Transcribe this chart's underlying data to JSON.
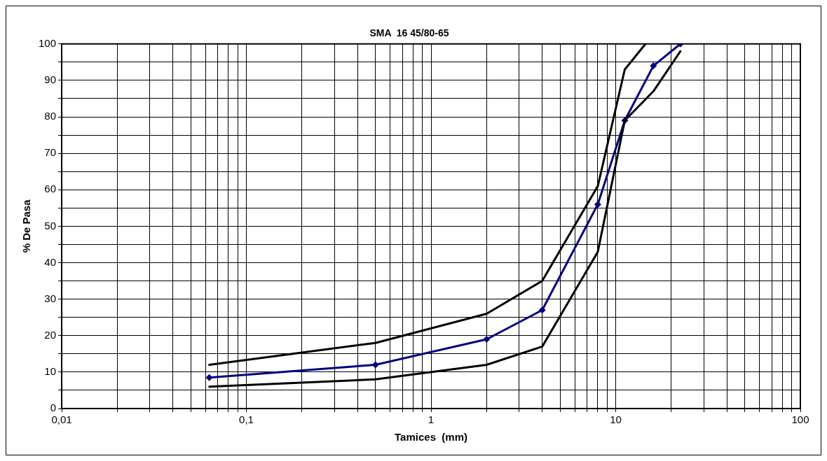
{
  "chart_data": {
    "type": "line",
    "title": "SMA  16 45/80-65",
    "xlabel": "Tamices  (mm)",
    "ylabel": "% De Pasa",
    "log": "x",
    "xlim": [
      0.01,
      100
    ],
    "ylim": [
      0,
      100
    ],
    "xticks": [
      {
        "value": 0.01,
        "label": "0,01"
      },
      {
        "value": 0.02,
        "label": null
      },
      {
        "value": 0.03,
        "label": null
      },
      {
        "value": 0.04,
        "label": null
      },
      {
        "value": 0.05,
        "label": null
      },
      {
        "value": 0.06,
        "label": null
      },
      {
        "value": 0.07,
        "label": null
      },
      {
        "value": 0.08,
        "label": null
      },
      {
        "value": 0.09,
        "label": null
      },
      {
        "value": 0.1,
        "label": "0,1"
      },
      {
        "value": 0.2,
        "label": null
      },
      {
        "value": 0.3,
        "label": null
      },
      {
        "value": 0.4,
        "label": null
      },
      {
        "value": 0.5,
        "label": null
      },
      {
        "value": 0.6,
        "label": null
      },
      {
        "value": 0.7,
        "label": null
      },
      {
        "value": 0.8,
        "label": null
      },
      {
        "value": 0.9,
        "label": null
      },
      1,
      {
        "value": 2,
        "label": null
      },
      {
        "value": 3,
        "label": null
      },
      {
        "value": 4,
        "label": null
      },
      {
        "value": 5,
        "label": null
      },
      {
        "value": 6,
        "label": null
      },
      {
        "value": 7,
        "label": null
      },
      {
        "value": 8,
        "label": null
      },
      {
        "value": 9,
        "label": null
      },
      10,
      {
        "value": 20,
        "label": null
      },
      {
        "value": 30,
        "label": null
      },
      {
        "value": 40,
        "label": null
      },
      {
        "value": 50,
        "label": null
      },
      {
        "value": 60,
        "label": null
      },
      {
        "value": 70,
        "label": null
      },
      {
        "value": 80,
        "label": null
      },
      {
        "value": 90,
        "label": null
      },
      100
    ],
    "yticks": [
      0,
      {
        "value": 5,
        "label": null
      },
      10,
      {
        "value": 15,
        "label": null
      },
      20,
      {
        "value": 25,
        "label": null
      },
      30,
      {
        "value": 35,
        "label": null
      },
      40,
      {
        "value": 45,
        "label": null
      },
      50,
      {
        "value": 55,
        "label": null
      },
      60,
      {
        "value": 65,
        "label": null
      },
      70,
      {
        "value": 75,
        "label": null
      },
      80,
      {
        "value": 85,
        "label": null
      },
      90,
      {
        "value": 95,
        "label": null
      },
      100
    ],
    "grid": true,
    "legend": false,
    "line_style": "solid",
    "series": [
      {
        "color": "#000000",
        "marker": "none",
        "x": [
          0.063,
          0.5,
          2,
          4,
          8,
          11.2,
          14.5
        ],
        "values": [
          12,
          18,
          26,
          35,
          61,
          93,
          100
        ]
      },
      {
        "color": "#000000",
        "marker": "none",
        "x": [
          0.063,
          0.5,
          2,
          4,
          8,
          11.2,
          16,
          22.4
        ],
        "values": [
          6,
          8,
          12,
          17,
          43,
          79,
          87,
          98
        ]
      },
      {
        "color": "#000080",
        "marker": "diamond",
        "x": [
          0.063,
          0.5,
          2,
          4,
          8,
          11.2,
          16,
          22.4
        ],
        "values": [
          8.5,
          12,
          19,
          27,
          56,
          79,
          94,
          100
        ]
      }
    ]
  }
}
